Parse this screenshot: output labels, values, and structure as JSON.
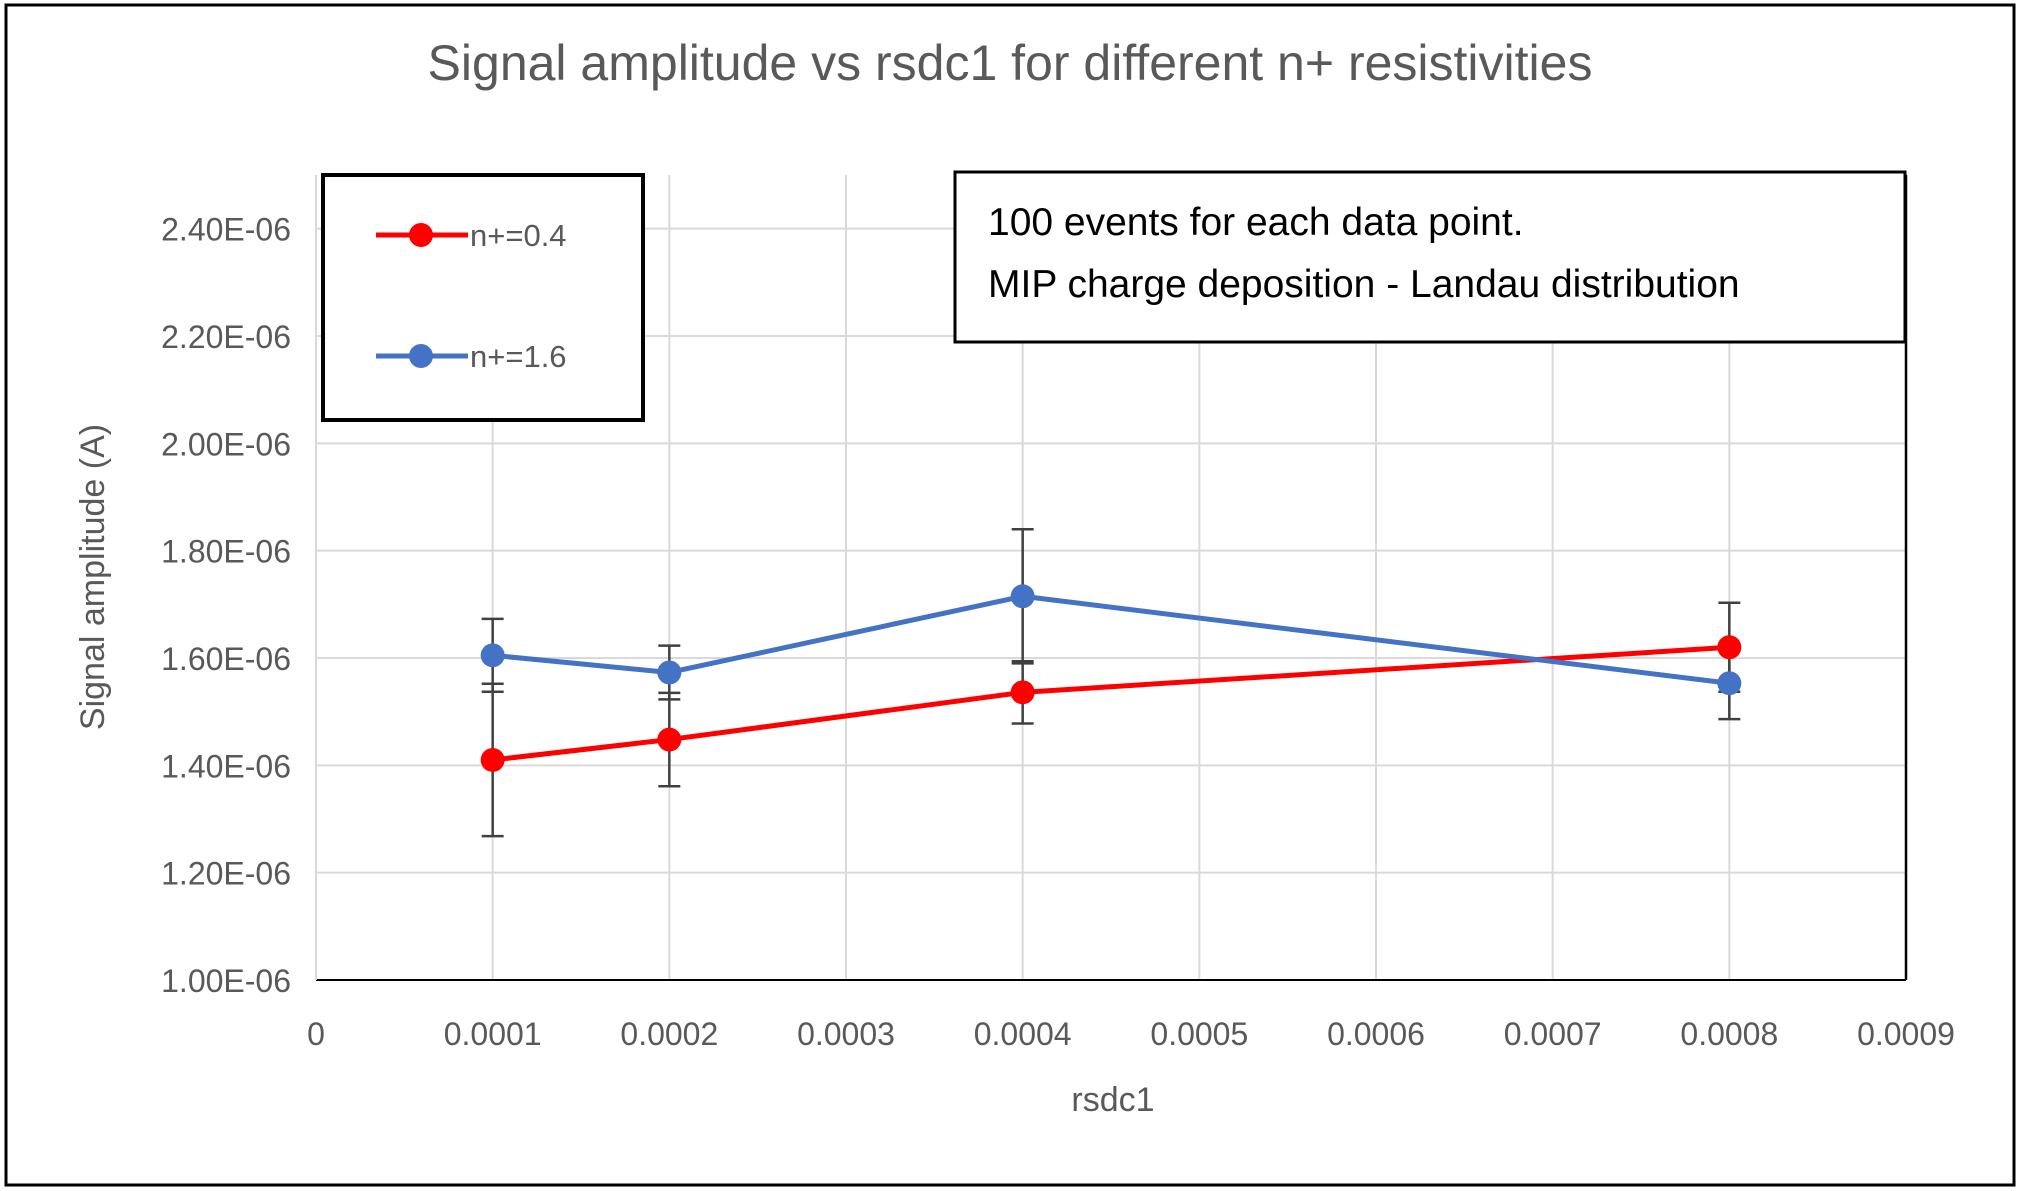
{
  "chart_data": {
    "type": "line",
    "title": "Signal amplitude vs rsdc1 for different n+ resistivities",
    "xlabel": "rsdc1",
    "ylabel": "Signal amplitude (A)",
    "xlim": [
      0,
      0.0009
    ],
    "ylim": [
      1e-06,
      2.5e-06
    ],
    "x_ticks": [
      0,
      0.0001,
      0.0002,
      0.0003,
      0.0004,
      0.0005,
      0.0006,
      0.0007,
      0.0008,
      0.0009
    ],
    "x_tick_labels": [
      "0",
      "0.0001",
      "0.0002",
      "0.0003",
      "0.0004",
      "0.0005",
      "0.0006",
      "0.0007",
      "0.0008",
      "0.0009"
    ],
    "y_ticks": [
      1e-06,
      1.2e-06,
      1.4e-06,
      1.6e-06,
      1.8e-06,
      2e-06,
      2.2e-06,
      2.4e-06
    ],
    "y_tick_labels": [
      "1.00E-06",
      "1.20E-06",
      "1.40E-06",
      "1.60E-06",
      "1.80E-06",
      "2.00E-06",
      "2.20E-06",
      "2.40E-06"
    ],
    "grid": true,
    "legend_position": "top-left",
    "series": [
      {
        "name": "n+=0.4",
        "color": "#ff0000",
        "x": [
          0.0001,
          0.0002,
          0.0004,
          0.0008
        ],
        "values": [
          1.41e-06,
          1.448e-06,
          1.536e-06,
          1.62e-06
        ],
        "errors": [
          1.42e-07,
          8.7e-08,
          5.8e-08,
          8.3e-08
        ]
      },
      {
        "name": "n+=1.6",
        "color": "#4472c4",
        "x": [
          0.0001,
          0.0002,
          0.0004,
          0.0008
        ],
        "values": [
          1.605e-06,
          1.573e-06,
          1.715e-06,
          1.553e-06
        ],
        "errors": [
          6.8e-08,
          5e-08,
          1.25e-07,
          6.7e-08
        ]
      }
    ],
    "annotation": {
      "lines": [
        "100 events for each data point.",
        "MIP charge deposition - Landau distribution"
      ]
    }
  }
}
